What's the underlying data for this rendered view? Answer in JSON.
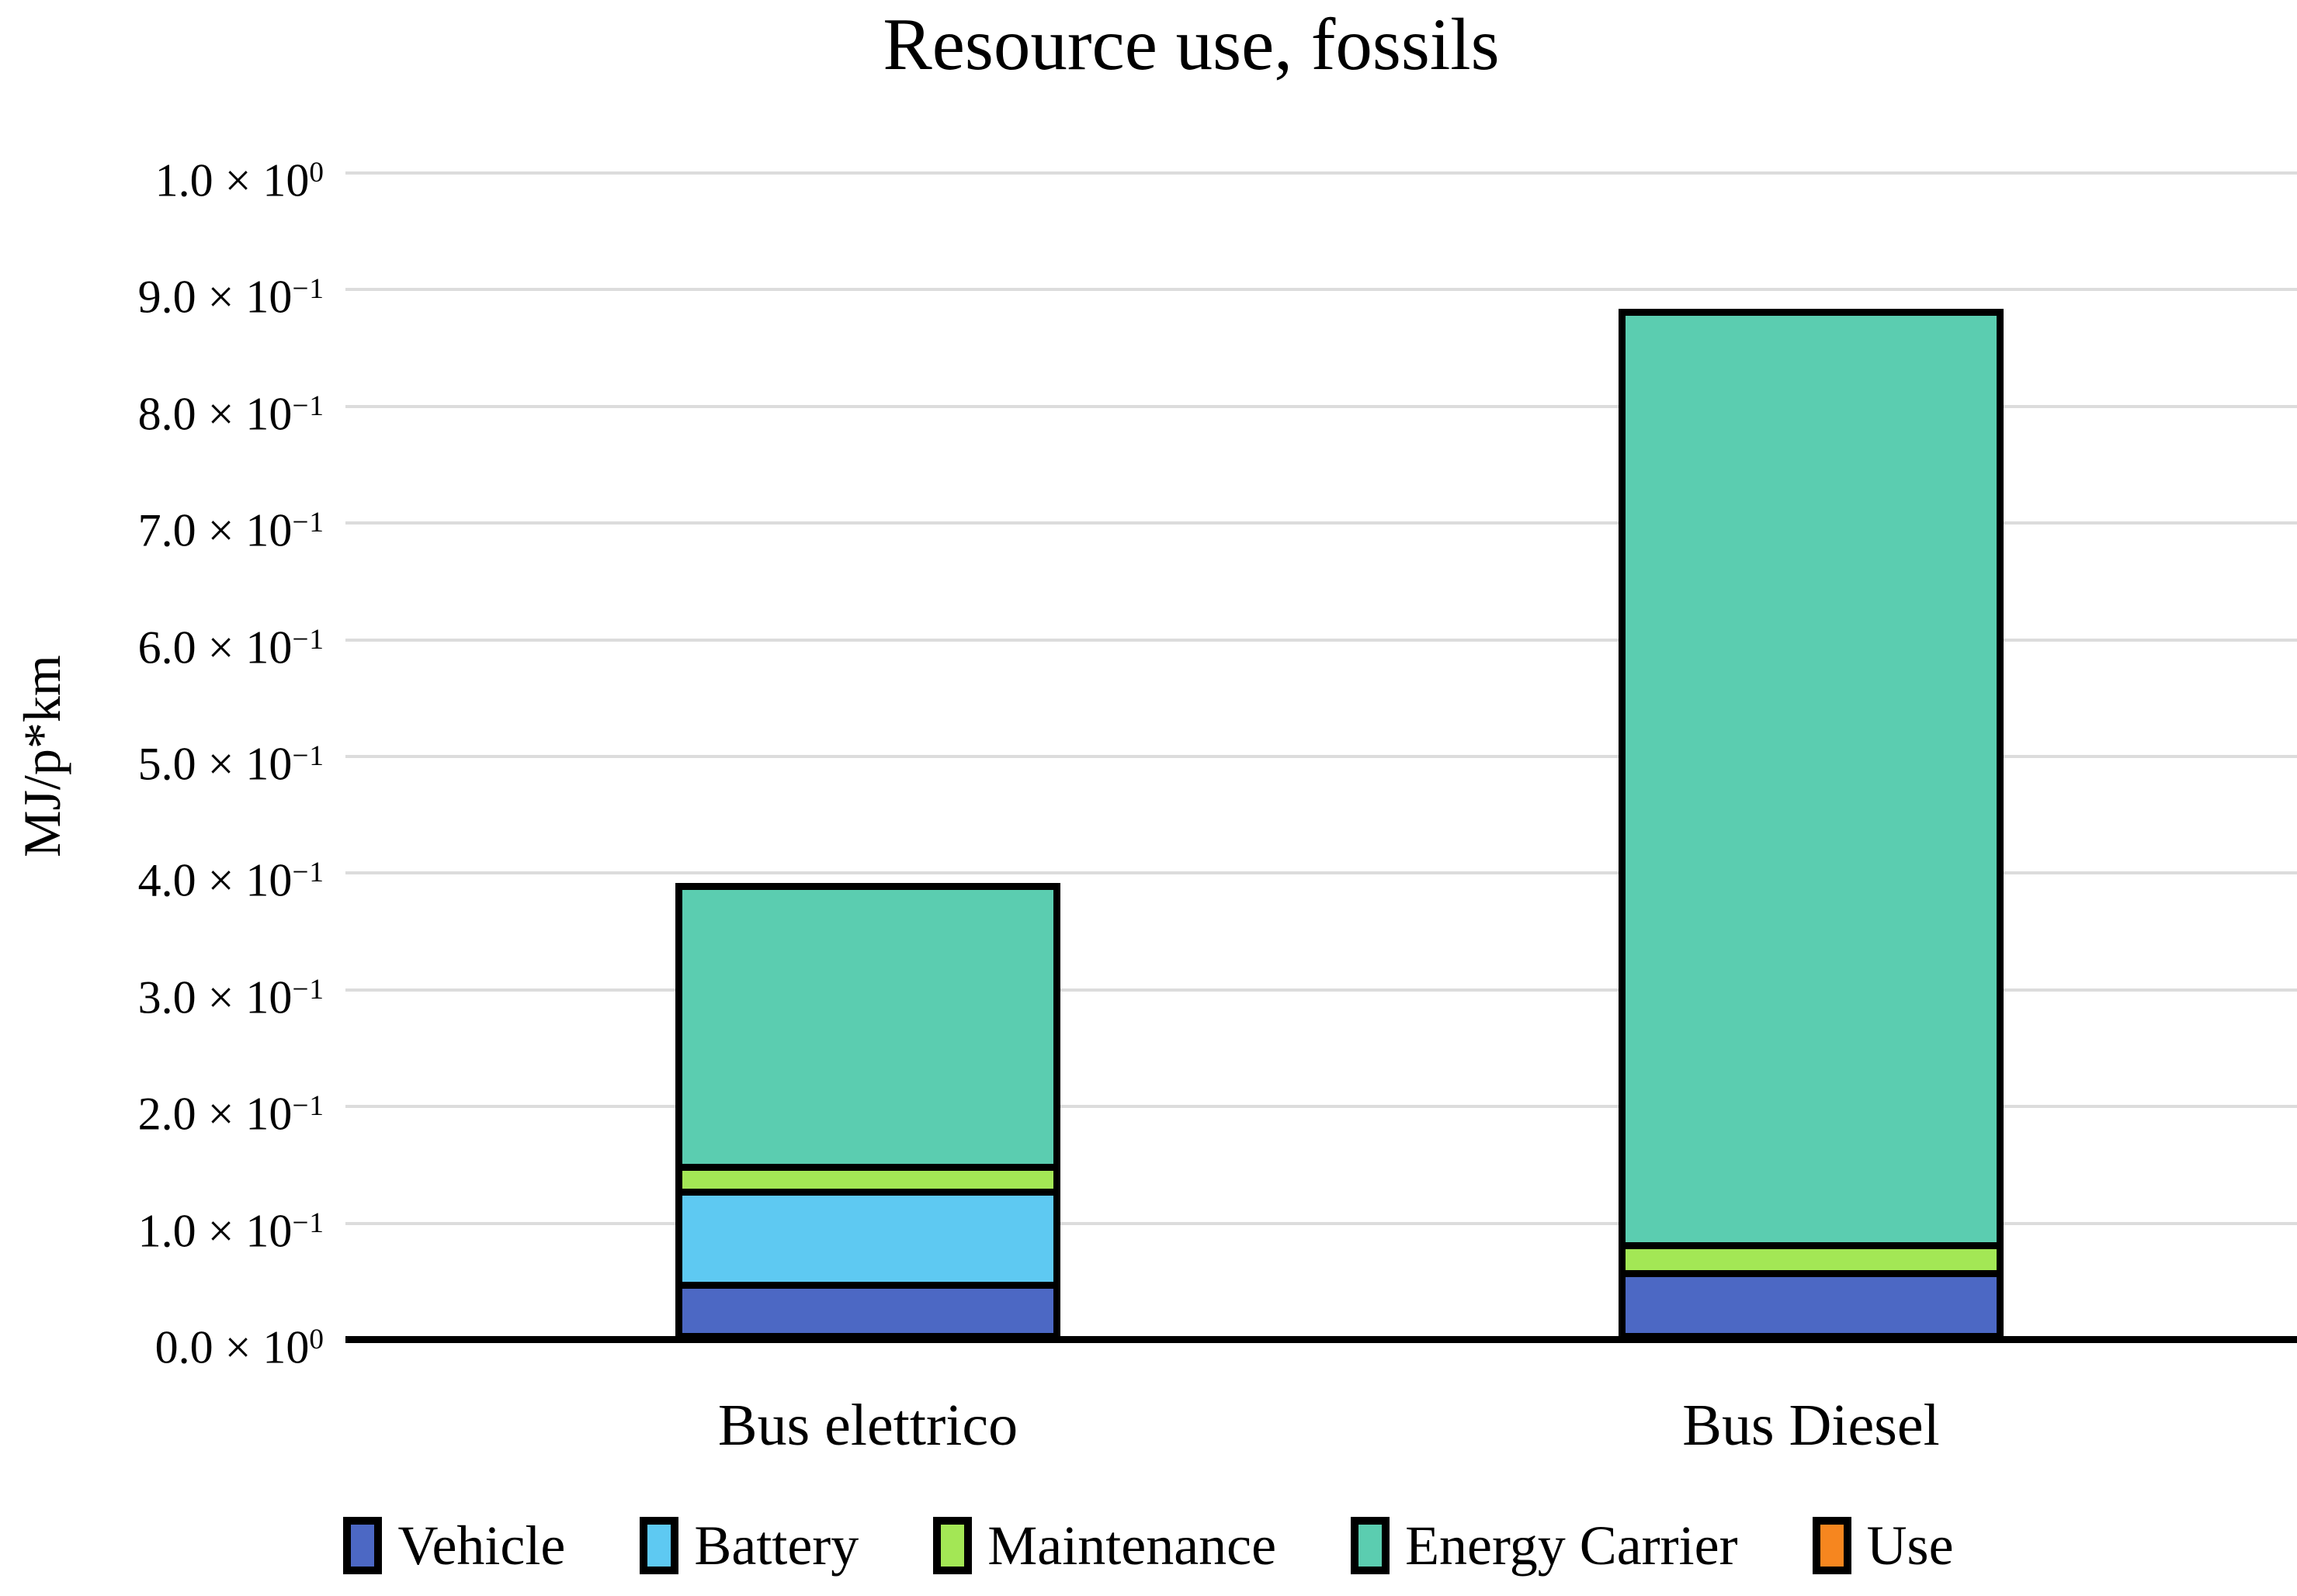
{
  "chart_data": {
    "type": "bar",
    "stacked": true,
    "title": "Resource use, fossils",
    "ylabel": "MJ/p*km",
    "ylim": [
      0,
      1.0
    ],
    "grid": true,
    "legend_position": "bottom",
    "tick_format": "scientific",
    "categories": [
      "Bus elettrico",
      "Bus Diesel"
    ],
    "series": [
      {
        "name": "Vehicle",
        "color": "#4C68C4",
        "values": [
          0.05,
          0.06
        ]
      },
      {
        "name": "Battery",
        "color": "#5EC9F2",
        "values": [
          0.08,
          0
        ]
      },
      {
        "name": "Maintenance",
        "color": "#A3E755",
        "values": [
          0.021,
          0.024
        ]
      },
      {
        "name": "Energy Carrier",
        "color": "#5BCDB0",
        "values": [
          0.241,
          0.8
        ]
      },
      {
        "name": "Use",
        "color": "#F6861F",
        "values": [
          0,
          0
        ]
      }
    ],
    "totals": [
      0.392,
      0.885
    ],
    "times_symbol": "×",
    "power_base": "10",
    "y_ticks": [
      {
        "value": 1.0,
        "mantissa": "1.0",
        "exponent": "0"
      },
      {
        "value": 0.9,
        "mantissa": "9.0",
        "exponent": "−1"
      },
      {
        "value": 0.8,
        "mantissa": "8.0",
        "exponent": "−1"
      },
      {
        "value": 0.7,
        "mantissa": "7.0",
        "exponent": "−1"
      },
      {
        "value": 0.6,
        "mantissa": "6.0",
        "exponent": "−1"
      },
      {
        "value": 0.5,
        "mantissa": "5.0",
        "exponent": "−1"
      },
      {
        "value": 0.4,
        "mantissa": "4.0",
        "exponent": "−1"
      },
      {
        "value": 0.3,
        "mantissa": "3.0",
        "exponent": "−1"
      },
      {
        "value": 0.2,
        "mantissa": "2.0",
        "exponent": "−1"
      },
      {
        "value": 0.1,
        "mantissa": "1.0",
        "exponent": "−1"
      },
      {
        "value": 0.0,
        "mantissa": "0.0",
        "exponent": "0"
      }
    ]
  },
  "colors": {
    "gridline": "#DCDCDC",
    "axis": "#000000",
    "bar_border": "#000000",
    "text": "#000000",
    "background": "#FFFFFF"
  }
}
